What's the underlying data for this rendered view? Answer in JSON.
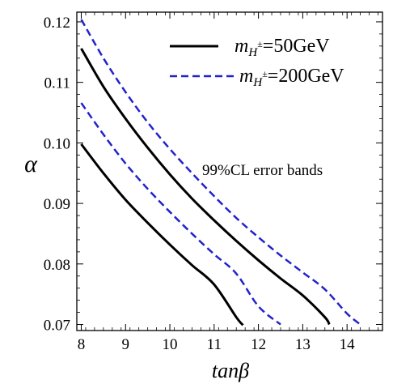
{
  "chart_data": {
    "type": "line",
    "xlabel": "tanβ",
    "ylabel": "α",
    "xlim": [
      7.9,
      14.8
    ],
    "ylim": [
      0.069,
      0.1216
    ],
    "xticks": [
      {
        "value": 8,
        "label": "8"
      },
      {
        "value": 9,
        "label": "9"
      },
      {
        "value": 10,
        "label": "10"
      },
      {
        "value": 11,
        "label": "11"
      },
      {
        "value": 12,
        "label": "12"
      },
      {
        "value": 13,
        "label": "13"
      },
      {
        "value": 14,
        "label": "14"
      }
    ],
    "yticks": [
      {
        "value": 0.07,
        "label": "0.07"
      },
      {
        "value": 0.08,
        "label": "0.08"
      },
      {
        "value": 0.09,
        "label": "0.09"
      },
      {
        "value": 0.1,
        "label": "0.10"
      },
      {
        "value": 0.11,
        "label": "0.11"
      },
      {
        "value": 0.12,
        "label": "0.12"
      }
    ],
    "annotation": "99%CL error bands",
    "legend": {
      "placement": "top-right",
      "entries": [
        {
          "math": "m",
          "sub": "H",
          "sup": "±",
          "rest": "=50GeV",
          "color": "#000000",
          "dash": "solid"
        },
        {
          "math": "m",
          "sub": "H",
          "sup": "±",
          "rest": "=200GeV",
          "color": "#2222cc",
          "dash": "dashed"
        }
      ]
    },
    "series": [
      {
        "color": "#000000",
        "dash": "solid",
        "x": [
          8.0,
          8.5,
          9.0,
          9.5,
          10.0,
          10.5,
          11.0,
          11.5,
          11.65
        ],
        "y": [
          0.0998,
          0.095,
          0.0906,
          0.0868,
          0.0832,
          0.0798,
          0.0766,
          0.0712,
          0.0699
        ]
      },
      {
        "color": "#000000",
        "dash": "solid",
        "x": [
          8.0,
          8.5,
          9.0,
          9.5,
          10.0,
          10.5,
          11.0,
          11.5,
          12.0,
          12.5,
          13.0,
          13.5,
          13.6
        ],
        "y": [
          0.1156,
          0.1093,
          0.104,
          0.0992,
          0.0948,
          0.0908,
          0.0872,
          0.0838,
          0.0806,
          0.0776,
          0.0748,
          0.0712,
          0.07
        ]
      },
      {
        "color": "#2222cc",
        "dash": "dashed",
        "x": [
          8.0,
          8.5,
          9.0,
          9.5,
          10.0,
          10.5,
          11.0,
          11.5,
          12.0,
          12.5
        ],
        "y": [
          0.1066,
          0.1014,
          0.0966,
          0.0924,
          0.0886,
          0.085,
          0.0816,
          0.0784,
          0.073,
          0.07
        ]
      },
      {
        "color": "#2222cc",
        "dash": "dashed",
        "x": [
          8.0,
          8.5,
          9.0,
          9.5,
          10.0,
          10.5,
          11.0,
          11.5,
          12.0,
          12.5,
          13.0,
          13.5,
          14.0,
          14.3
        ],
        "y": [
          0.1204,
          0.114,
          0.1084,
          0.1034,
          0.099,
          0.095,
          0.0912,
          0.0876,
          0.0844,
          0.0814,
          0.0786,
          0.0758,
          0.0718,
          0.07
        ]
      }
    ]
  }
}
